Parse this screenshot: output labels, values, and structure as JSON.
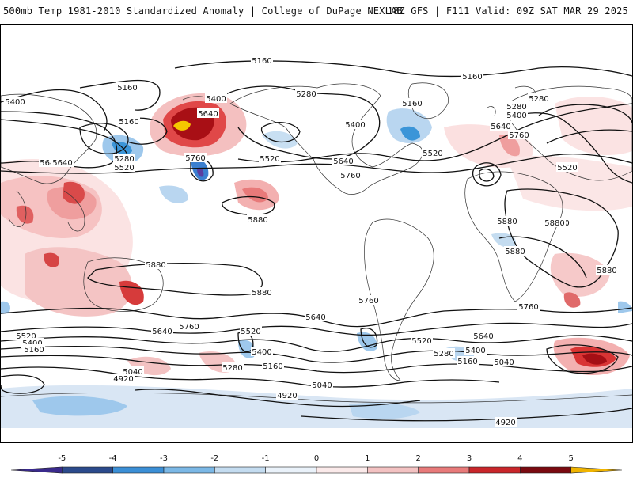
{
  "header": {
    "title_left": "500mb Temp 1981-2010 Standardized Anomaly | College of DuPage NEXLAB",
    "title_right": "18Z GFS | F111 Valid: 09Z SAT MAR 29 2025"
  },
  "map": {
    "contour_labels": [
      "5160",
      "5160",
      "5160",
      "5280",
      "5400",
      "5400",
      "5640",
      "5640",
      "5400",
      "5280",
      "5520",
      "5160",
      "5640",
      "5760",
      "5520",
      "5760",
      "5880",
      "5880",
      "5880",
      "5400",
      "5160",
      "5280",
      "5400",
      "5640",
      "5520",
      "5760",
      "5640",
      "5520",
      "5280",
      "5880",
      "5880",
      "5880",
      "5880",
      "5880",
      "5760",
      "5640",
      "5760",
      "5640",
      "5520",
      "5400",
      "5160",
      "5040",
      "4920",
      "5520",
      "5400",
      "5280",
      "5160",
      "5040",
      "5760",
      "5640",
      "5520",
      "5400",
      "5280",
      "5160",
      "5040",
      "4920",
      "4920"
    ],
    "anomaly_colors": {
      "strong_warm": "#a50f15",
      "warm": "#e3383c",
      "mild_warm": "#f4b6b6",
      "weak_warm": "#fbe0e0",
      "weak_cold": "#d9e6f4",
      "mild_cold": "#9ec8ec",
      "cold": "#3b95d8",
      "extreme_warm": "#f5c800",
      "extreme_cold": "#5a3ea0"
    }
  },
  "colorbar": {
    "ticks": [
      "-5",
      "-4",
      "-3",
      "-2",
      "-1",
      "0",
      "1",
      "2",
      "3",
      "4",
      "5"
    ],
    "colors": [
      "#3a2a8c",
      "#2b4a8c",
      "#3b8fd6",
      "#7bb8e6",
      "#c4dcf0",
      "#eaf2fa",
      "#fbeaea",
      "#f3c2c2",
      "#e87a7a",
      "#c9262a",
      "#7a0a10",
      "#f0b400"
    ]
  }
}
